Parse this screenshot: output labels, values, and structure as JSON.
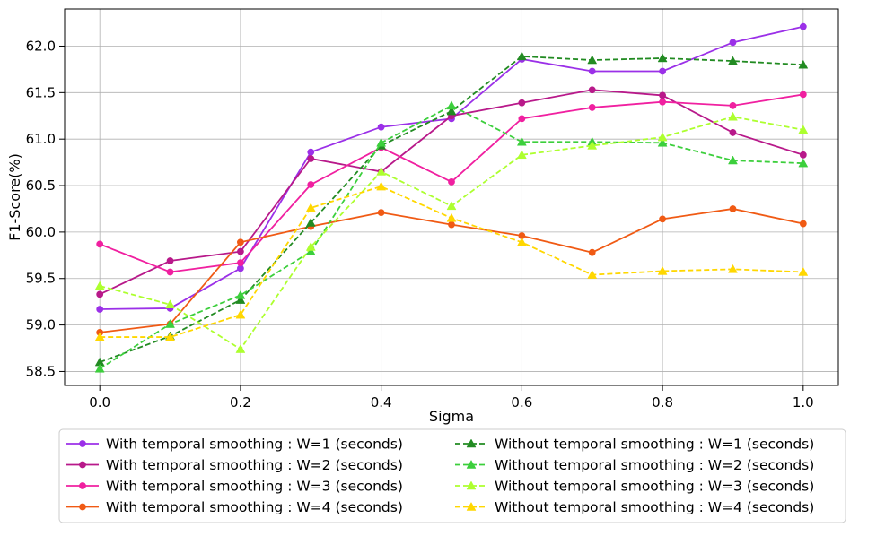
{
  "chart_data": {
    "type": "line",
    "title": "",
    "xlabel": "Sigma",
    "ylabel": "F1-Score(%)",
    "xlim": [
      -0.05,
      1.05
    ],
    "ylim": [
      58.35,
      62.4
    ],
    "x_ticks": [
      0.0,
      0.2,
      0.4,
      0.6,
      0.8,
      1.0
    ],
    "x_tick_labels": [
      "0.0",
      "0.2",
      "0.4",
      "0.6",
      "0.8",
      "1.0"
    ],
    "y_ticks": [
      58.5,
      59.0,
      59.5,
      60.0,
      60.5,
      61.0,
      61.5,
      62.0
    ],
    "y_tick_labels": [
      "58.5",
      "59.0",
      "59.5",
      "60.0",
      "60.5",
      "61.0",
      "61.5",
      "62.0"
    ],
    "grid": true,
    "legend_position": "bottom-outside",
    "x": [
      0.0,
      0.1,
      0.2,
      0.3,
      0.4,
      0.5,
      0.6,
      0.7,
      0.8,
      0.9,
      1.0
    ],
    "series": [
      {
        "name": "With temporal smoothing : W=1 (seconds)",
        "color": "#9b30e8",
        "style": "solid",
        "marker": "circle",
        "values": [
          59.17,
          59.18,
          59.61,
          60.86,
          61.13,
          61.22,
          61.86,
          61.73,
          61.73,
          62.04,
          62.21
        ]
      },
      {
        "name": "With temporal smoothing : W=2 (seconds)",
        "color": "#b8198a",
        "style": "solid",
        "marker": "circle",
        "values": [
          59.33,
          59.69,
          59.79,
          60.79,
          60.65,
          61.25,
          61.39,
          61.53,
          61.47,
          61.07,
          60.83
        ]
      },
      {
        "name": "With temporal smoothing : W=3 (seconds)",
        "color": "#f020a0",
        "style": "solid",
        "marker": "circle",
        "values": [
          59.87,
          59.57,
          59.67,
          60.51,
          60.91,
          60.54,
          61.22,
          61.34,
          61.4,
          61.36,
          61.48
        ]
      },
      {
        "name": "With temporal smoothing : W=4 (seconds)",
        "color": "#f05a14",
        "style": "solid",
        "marker": "circle",
        "values": [
          58.92,
          59.01,
          59.89,
          60.06,
          60.21,
          60.08,
          59.96,
          59.78,
          60.14,
          60.25,
          60.09
        ]
      },
      {
        "name": "Without temporal smoothing : W=1 (seconds)",
        "color": "#228b22",
        "style": "dashed",
        "marker": "triangle",
        "values": [
          58.6,
          58.88,
          59.27,
          60.1,
          60.93,
          61.3,
          61.89,
          61.85,
          61.87,
          61.84,
          61.8
        ]
      },
      {
        "name": "Without temporal smoothing : W=2 (seconds)",
        "color": "#3ccf3c",
        "style": "dashed",
        "marker": "triangle",
        "values": [
          58.53,
          59.01,
          59.32,
          59.79,
          60.96,
          61.36,
          60.97,
          60.97,
          60.96,
          60.77,
          60.74
        ]
      },
      {
        "name": "Without temporal smoothing : W=3 (seconds)",
        "color": "#adff2f",
        "style": "dashed",
        "marker": "triangle",
        "values": [
          59.42,
          59.22,
          58.74,
          59.84,
          60.65,
          60.28,
          60.83,
          60.93,
          61.02,
          61.24,
          61.1
        ]
      },
      {
        "name": "Without temporal smoothing : W=4 (seconds)",
        "color": "#ffd700",
        "style": "dashed",
        "marker": "triangle",
        "values": [
          58.87,
          58.87,
          59.11,
          60.26,
          60.49,
          60.15,
          59.89,
          59.54,
          59.58,
          59.6,
          59.57
        ]
      }
    ]
  }
}
